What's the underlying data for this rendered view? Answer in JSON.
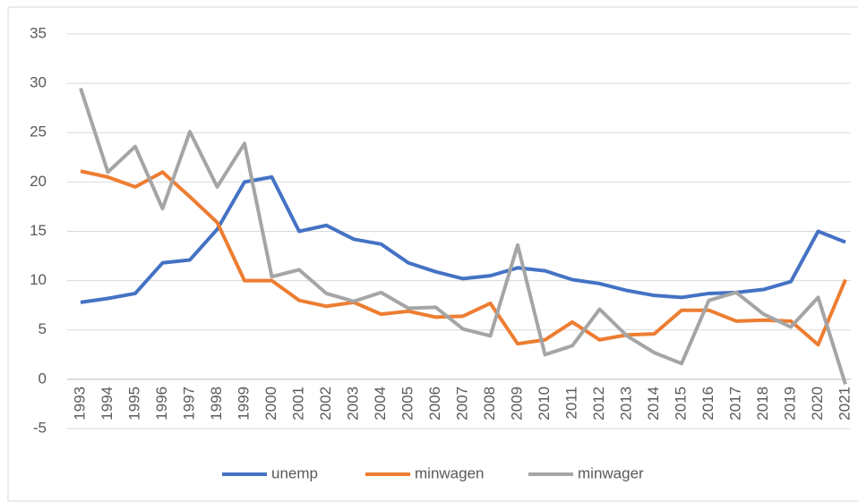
{
  "chart_data": {
    "type": "line",
    "categories": [
      "1993",
      "1994",
      "1995",
      "1996",
      "1997",
      "1998",
      "1999",
      "2000",
      "2001",
      "2002",
      "2003",
      "2004",
      "2005",
      "2006",
      "2007",
      "2008",
      "2009",
      "2010",
      "2011",
      "2012",
      "2013",
      "2014",
      "2015",
      "2016",
      "2017",
      "2018",
      "2019",
      "2020",
      "2021"
    ],
    "series": [
      {
        "name": "unemp",
        "color": "#4472c4",
        "values": [
          7.8,
          8.2,
          8.7,
          11.8,
          12.1,
          15.2,
          20,
          20.5,
          15,
          15.6,
          14.2,
          13.7,
          11.8,
          10.9,
          10.2,
          10.5,
          11.3,
          11,
          10.1,
          9.7,
          9,
          8.5,
          8.3,
          8.7,
          8.8,
          9.1,
          9.9,
          15,
          13.9
        ]
      },
      {
        "name": "minwagen",
        "color": "#ed7d31",
        "values": [
          21.1,
          20.5,
          19.5,
          21,
          18.5,
          15.9,
          10,
          10,
          8,
          7.4,
          7.8,
          6.6,
          6.9,
          6.3,
          6.4,
          7.7,
          3.6,
          4,
          5.8,
          4,
          4.5,
          4.6,
          7,
          7,
          5.9,
          6,
          5.9,
          3.5,
          10.1
        ]
      },
      {
        "name": "minwager",
        "color": "#a5a5a5",
        "values": [
          29.5,
          21,
          23.6,
          17.3,
          25.1,
          19.5,
          23.9,
          10.4,
          11.1,
          8.7,
          7.9,
          8.8,
          7.2,
          7.3,
          5.1,
          4.4,
          13.6,
          2.5,
          3.4,
          7.1,
          4.4,
          2.7,
          1.6,
          8,
          8.8,
          6.6,
          5.3,
          8.3,
          -0.5
        ]
      }
    ],
    "ylim": [
      -5,
      35
    ],
    "yticks": [
      -5,
      0,
      5,
      10,
      15,
      20,
      25,
      30,
      35
    ],
    "grid": true,
    "legend": "bottom"
  }
}
